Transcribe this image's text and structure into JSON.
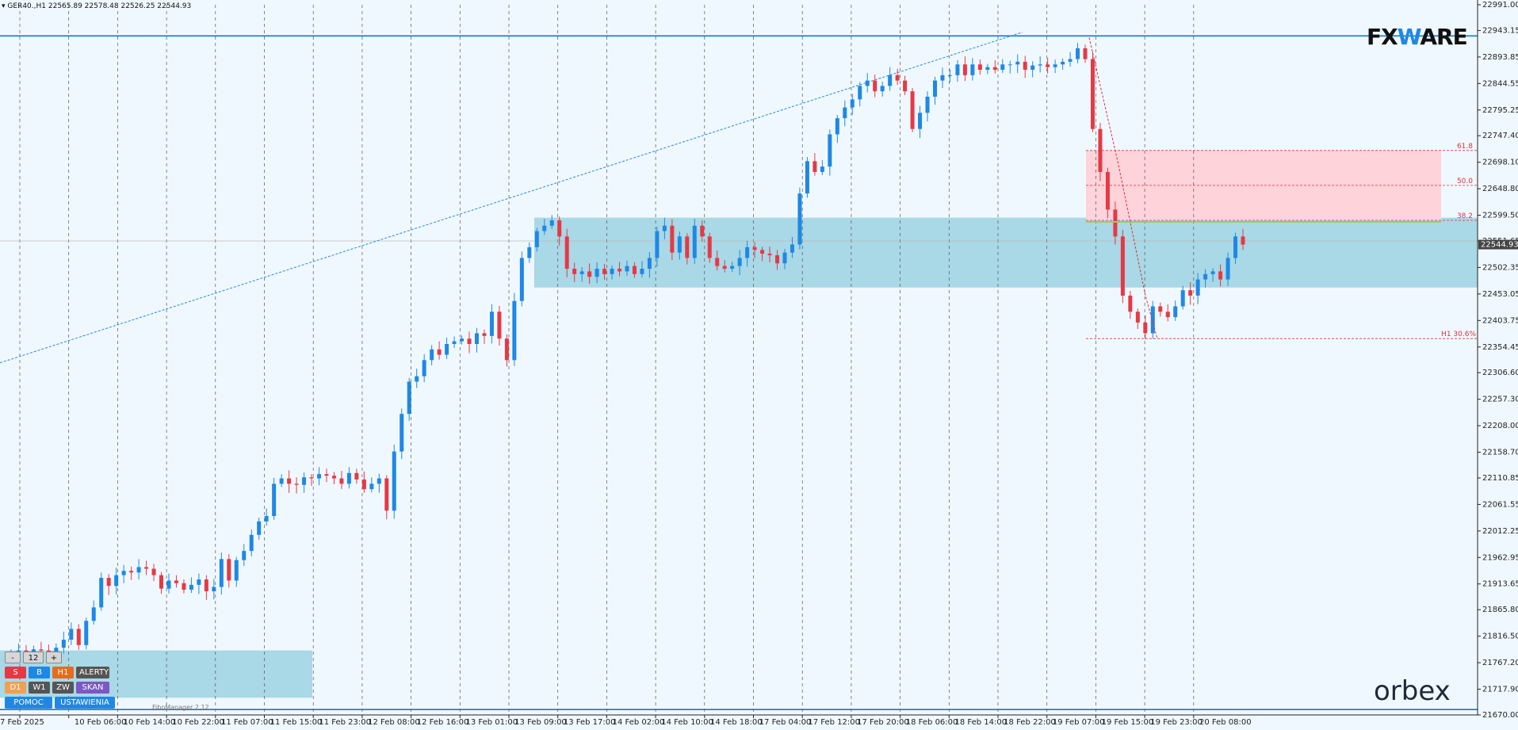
{
  "header": {
    "collapse_icon": "triangle-down-icon",
    "symbol": "GER40.,H1",
    "ohlc": "22565.89 22578.48 22526.25 22544.93"
  },
  "logos": {
    "fxware_prefix": "FX",
    "fxware_mark": "W",
    "fxware_suffix": "ARE",
    "orbex": "orbex"
  },
  "colors": {
    "bull": "#1e88e5",
    "bear": "#e53945",
    "zone": "#a9d8e6",
    "supply": "#ffd3da",
    "line": "#1976d2",
    "bg": "#f0f8ff"
  },
  "price_axis": {
    "labels": [
      "22991.00",
      "22943.15",
      "22893.85",
      "22844.55",
      "22795.25",
      "22747.40",
      "22698.10",
      "22648.80",
      "22599.50",
      "22551.65",
      "22502.35",
      "22453.05",
      "22403.75",
      "22354.45",
      "22306.60",
      "22257.30",
      "22208.00",
      "22158.70",
      "22110.85",
      "22061.55",
      "22012.25",
      "21962.95",
      "21913.65",
      "21865.80",
      "21816.50",
      "21767.20",
      "21717.90",
      "21670.00"
    ],
    "current": "22544.93"
  },
  "time_axis": {
    "labels": [
      "7 Feb 2025",
      "10 Feb 06:00",
      "10 Feb 14:00",
      "10 Feb 22:00",
      "11 Feb 07:00",
      "11 Feb 15:00",
      "11 Feb 23:00",
      "12 Feb 08:00",
      "12 Feb 16:00",
      "13 Feb 01:00",
      "13 Feb 09:00",
      "13 Feb 17:00",
      "14 Feb 02:00",
      "14 Feb 10:00",
      "14 Feb 18:00",
      "17 Feb 04:00",
      "17 Feb 12:00",
      "17 Feb 20:00",
      "18 Feb 06:00",
      "18 Feb 14:00",
      "18 Feb 22:00",
      "19 Feb 07:00",
      "19 Feb 15:00",
      "19 Feb 23:00",
      "20 Feb 08:00"
    ]
  },
  "fib_labels": {
    "f618": "61.8",
    "f500": "50.0",
    "f382": "38.2",
    "h1": "H1 30.6%"
  },
  "panel": {
    "minus": "-",
    "value": "12",
    "plus": "+",
    "row2": [
      {
        "label": "S",
        "color": "#e53945"
      },
      {
        "label": "B",
        "color": "#1e88e5"
      },
      {
        "label": "H1",
        "color": "#e36c1e"
      },
      {
        "label": "ALERTY",
        "color": "#555555"
      }
    ],
    "row3": [
      {
        "label": "D1",
        "color": "#f0a050"
      },
      {
        "label": "W1",
        "color": "#555555"
      },
      {
        "label": "ZW",
        "color": "#555555"
      },
      {
        "label": "SKAN",
        "color": "#7e57c2"
      }
    ],
    "pomoc": "POMOC",
    "ustawienia": "USTAWIENIA",
    "fibomanager": "FiboManager 2.12"
  },
  "chart_data": {
    "type": "candlestick",
    "symbol": "GER40.",
    "timeframe": "H1",
    "ylim": [
      21670.0,
      22991.0
    ],
    "levels": {
      "resistance": 22933,
      "support": 21680,
      "fib_61_8": 22720,
      "fib_50_0": 22655,
      "fib_38_2": 22590,
      "h1_30_6": 22370
    },
    "zones": [
      {
        "name": "demand-zone-upper",
        "low": 22465,
        "high": 22595
      },
      {
        "name": "demand-zone-lower",
        "low": 21702,
        "high": 21790
      },
      {
        "name": "fib-supply-zone",
        "low": 22590,
        "high": 22720
      }
    ],
    "trendline": {
      "from": 22325,
      "to": 22940
    },
    "closes": [
      21786,
      21790,
      21785,
      21792,
      21790,
      21788,
      21795,
      21810,
      21830,
      21800,
      21845,
      21870,
      21925,
      21910,
      21930,
      21938,
      21935,
      21945,
      21942,
      21930,
      21905,
      21920,
      21915,
      21903,
      21912,
      21922,
      21900,
      21908,
      21960,
      21920,
      21958,
      21975,
      22005,
      22030,
      22040,
      22100,
      22110,
      22100,
      22098,
      22112,
      22110,
      22118,
      22115,
      22110,
      22100,
      22120,
      22108,
      22090,
      22100,
      22110,
      22050,
      22160,
      22230,
      22290,
      22300,
      22330,
      22350,
      22340,
      22360,
      22365,
      22370,
      22360,
      22380,
      22375,
      22420,
      22370,
      22330,
      22440,
      22520,
      22540,
      22570,
      22580,
      22590,
      22560,
      22500,
      22490,
      22495,
      22485,
      22500,
      22490,
      22500,
      22495,
      22505,
      22490,
      22500,
      22520,
      22570,
      22580,
      22530,
      22560,
      22520,
      22580,
      22560,
      22520,
      22505,
      22500,
      22505,
      22520,
      22540,
      22535,
      22528,
      22525,
      22510,
      22530,
      22545,
      22640,
      22700,
      22680,
      22690,
      22750,
      22780,
      22800,
      22815,
      22840,
      22850,
      22830,
      22840,
      22860,
      22850,
      22830,
      22760,
      22790,
      22820,
      22850,
      22860,
      22860,
      22880,
      22860,
      22880,
      22870,
      22875,
      22870,
      22880,
      22880,
      22885,
      22870,
      22878,
      22880,
      22875,
      22880,
      22885,
      22890,
      22910,
      22890,
      22760,
      22680,
      22610,
      22560,
      22450,
      22420,
      22400,
      22380,
      22430,
      22420,
      22410,
      22430,
      22460,
      22450,
      22480,
      22490,
      22495,
      22480,
      22520,
      22560,
      22545
    ]
  }
}
